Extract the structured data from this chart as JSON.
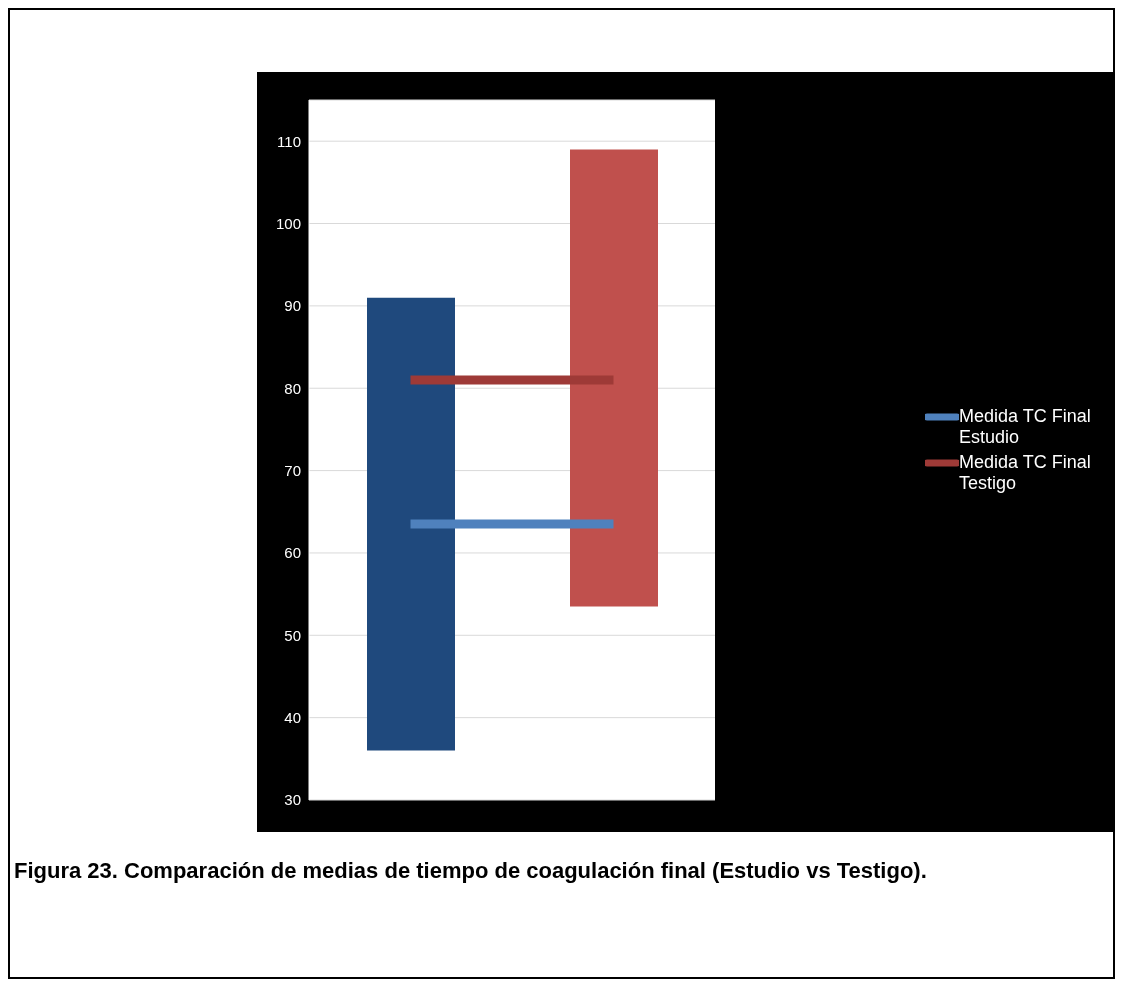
{
  "chart_data": {
    "type": "bar",
    "categories": [
      null,
      null
    ],
    "series": [
      {
        "values": [
          55,
          55.5
        ],
        "base": [
          36,
          53.5
        ],
        "colors": [
          "#1f497d",
          "#c0504d"
        ]
      },
      {
        "type": "line",
        "name": "Medida TC Final Estudio",
        "color": "#4f81bd",
        "values": [
          63.5,
          63.5
        ]
      },
      {
        "type": "line",
        "name": "Medida TC Final Testigo",
        "color": "#9e3a37",
        "values": [
          81,
          81
        ]
      }
    ],
    "ylim": [
      30,
      115
    ],
    "yticks": [
      30,
      40,
      50,
      60,
      70,
      80,
      90,
      100,
      110
    ],
    "grid": "y",
    "legend": "right",
    "marker": "none",
    "line_style": "solid",
    "annotations": [
      "Figura 23. Comparación de medias de tiempo de coagulación final (Estudio vs Testigo)."
    ]
  }
}
